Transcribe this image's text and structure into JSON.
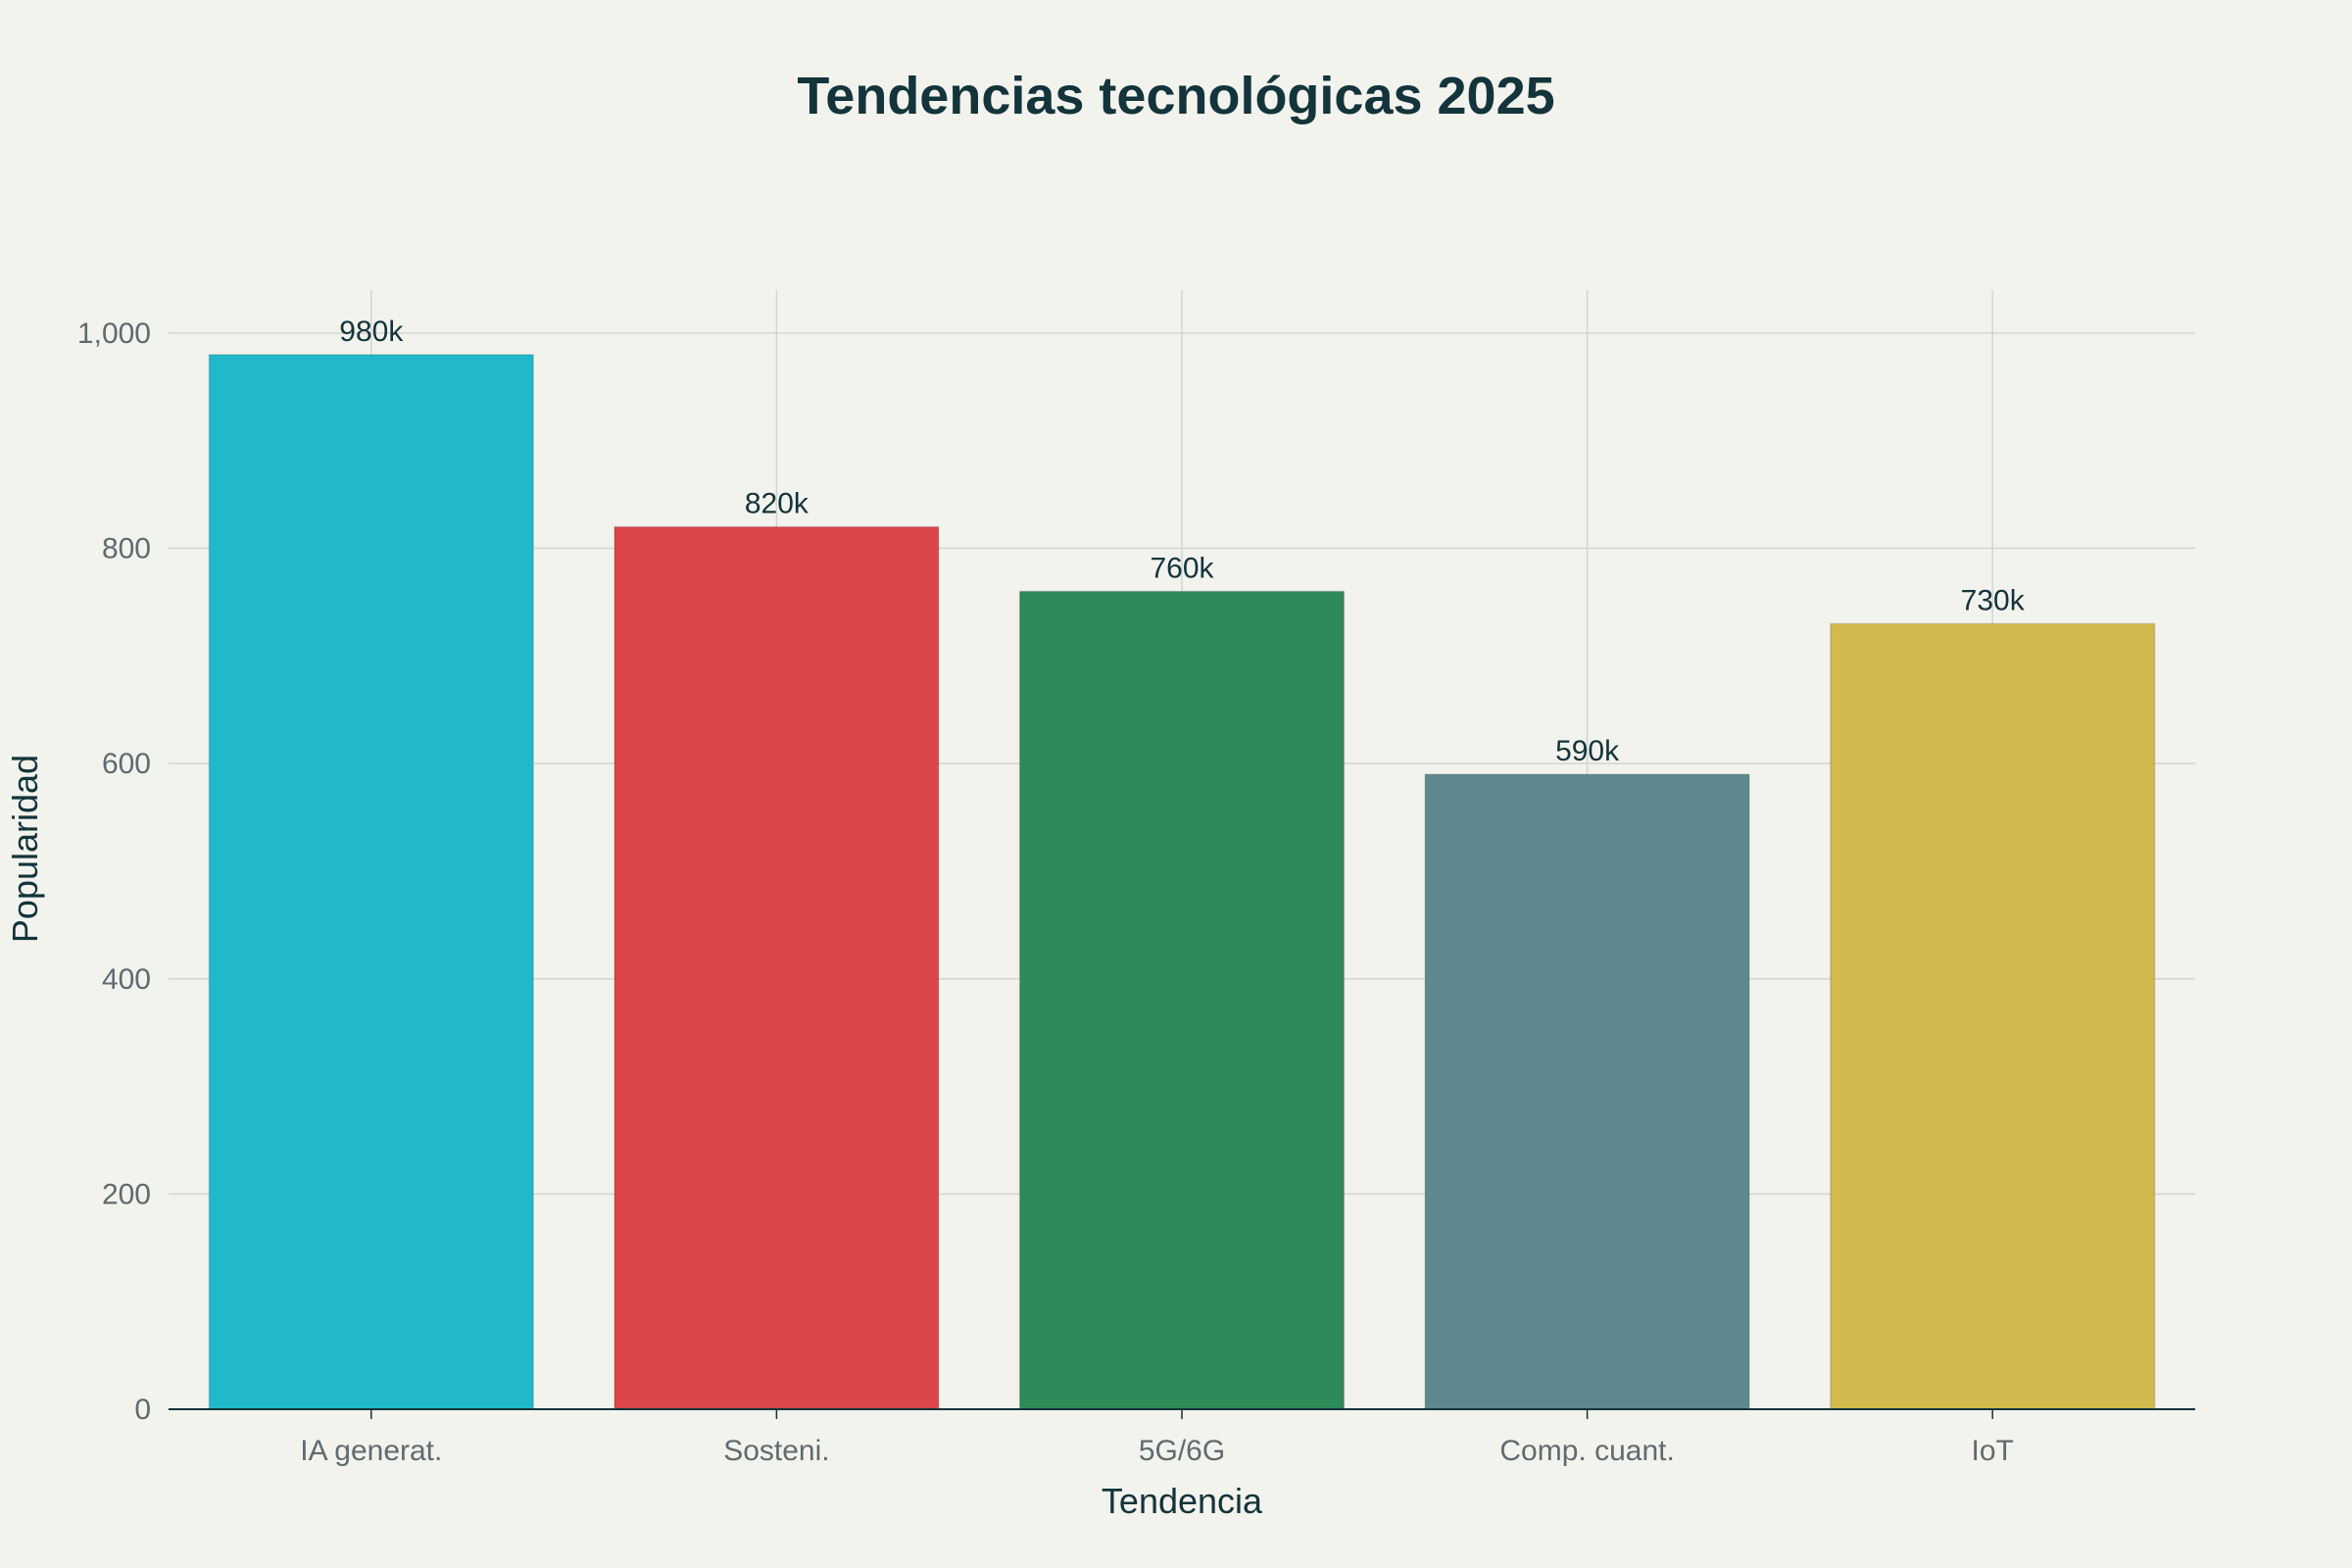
{
  "chart_data": {
    "type": "bar",
    "title": "Tendencias tecnológicas 2025",
    "xlabel": "Tendencia",
    "ylabel": "Popularidad",
    "categories": [
      "IA generat.",
      "Sosteni.",
      "5G/6G",
      "Comp. cuant.",
      "IoT"
    ],
    "values": [
      980,
      820,
      760,
      590,
      730
    ],
    "data_labels": [
      "980k",
      "820k",
      "760k",
      "590k",
      "730k"
    ],
    "colors": [
      "#21b8cc",
      "#db4648",
      "#2e8a58",
      "#5e888e",
      "#d2b94e"
    ],
    "ylim": [
      0,
      1040
    ],
    "yticks": [
      0,
      200,
      400,
      600,
      800,
      1000
    ],
    "ytick_labels": [
      "0",
      "200",
      "400",
      "600",
      "800",
      "1,000"
    ],
    "grid": true,
    "legend": "none"
  }
}
